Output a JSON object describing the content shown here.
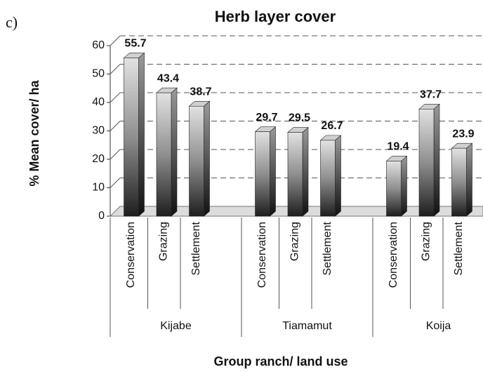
{
  "chart_data": {
    "type": "bar3d",
    "panel_label": "c)",
    "title": "Herb layer cover",
    "y_label": "% Mean cover/ ha",
    "x_label": "Group ranch/ land use",
    "groups": [
      "Kijabe",
      "Tiamamut",
      "Koija"
    ],
    "categories": [
      "Conservation",
      "Grazing",
      "Settlement",
      "Conservation",
      "Grazing",
      "Settlement",
      "Conservation",
      "Grazing",
      "Settlement"
    ],
    "values": [
      55.7,
      43.4,
      38.7,
      29.7,
      29.5,
      26.7,
      19.4,
      37.7,
      23.9
    ],
    "color": "#8a8a8a",
    "ylim": [
      0,
      60
    ],
    "yticks": [
      0,
      10,
      20,
      30,
      40,
      50,
      60
    ],
    "grid": true
  }
}
